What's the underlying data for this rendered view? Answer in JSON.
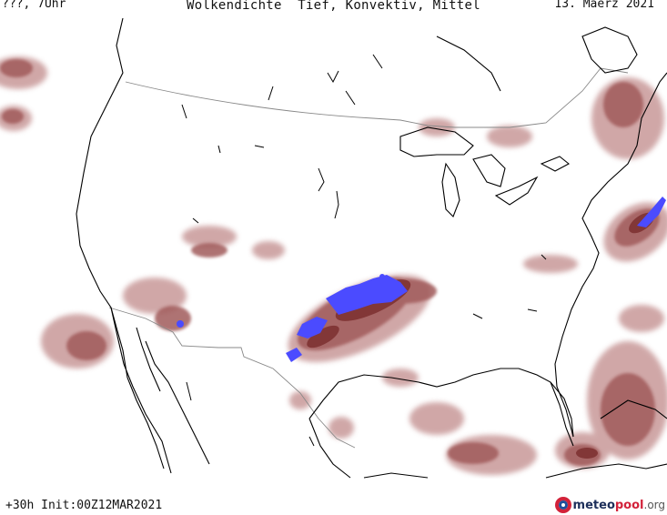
{
  "header": {
    "left": "???, 7Uhr",
    "title": "Wolkendichte  Tief, Konvektiv, Mittel",
    "date": "13. Maerz 2021"
  },
  "footer": {
    "left": "+30h Init:00Z12MAR2021"
  },
  "logo": {
    "brand_a": "meteo",
    "brand_b": "pool",
    "tld": ".org"
  },
  "legend_colors": {
    "cloud_light": "#c89898",
    "cloud_medium": "#a05a5a",
    "cloud_dense": "#7a2c2c",
    "convective": "#4b4bff",
    "coastline": "#000000",
    "border": "#888888"
  }
}
